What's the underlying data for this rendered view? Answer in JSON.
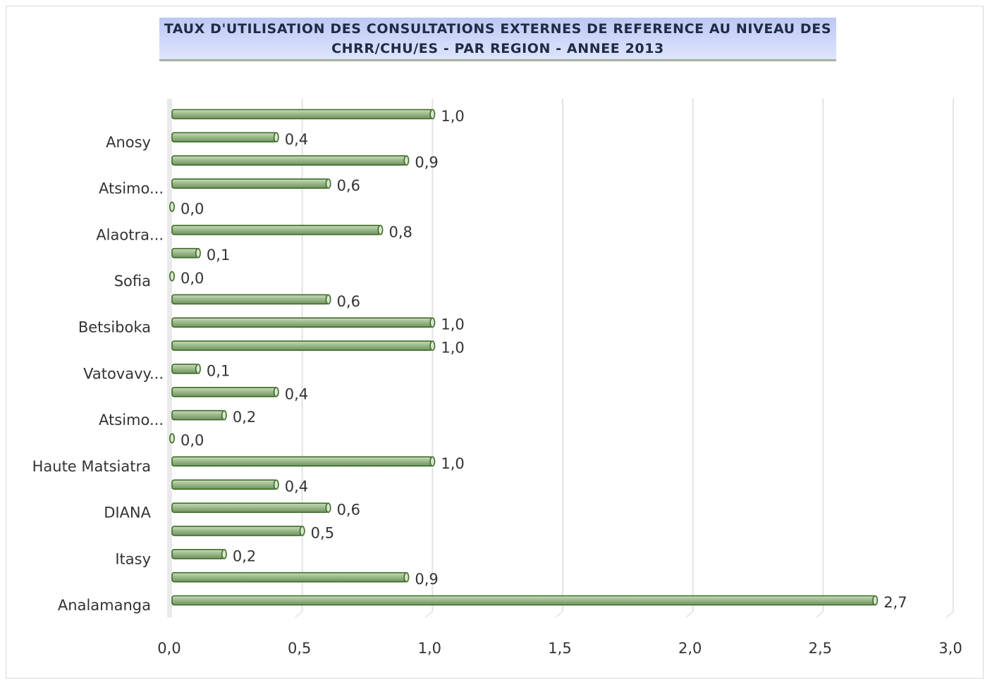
{
  "chart_data": {
    "type": "bar",
    "orientation": "horizontal",
    "title_lines": [
      "TAUX D'UTILISATION DES CONSULTATIONS EXTERNES DE REFERENCE AU NIVEAU DES",
      "CHRR/CHU/ES - PAR REGION - ANNEE 2013"
    ],
    "categories": [
      "",
      "Anosy",
      "",
      "Atsimo...",
      "",
      "Alaotra...",
      "",
      "Sofia",
      "",
      "Betsiboka",
      "",
      "Vatovavy...",
      "",
      "Atsimo...",
      "",
      "Haute Matsiatra",
      "",
      "DIANA",
      "",
      "Itasy",
      "",
      "Analamanga"
    ],
    "values": [
      1.0,
      0.4,
      0.9,
      0.6,
      0.0,
      0.8,
      0.1,
      0.0,
      0.6,
      1.0,
      1.0,
      0.1,
      0.4,
      0.2,
      0.0,
      1.0,
      0.4,
      0.6,
      0.5,
      0.2,
      0.9,
      2.7
    ],
    "data_labels": [
      "1,0",
      "0,4",
      "0,9",
      "0,6",
      "0,0",
      "0,8",
      "0,1",
      "0,0",
      "0,6",
      "1,0",
      "1,0",
      "0,1",
      "0,4",
      "0,2",
      "0,0",
      "1,0",
      "0,4",
      "0,6",
      "0,5",
      "0,2",
      "0,9",
      "2,7"
    ],
    "xlim": [
      0,
      3.0
    ],
    "x_ticks": [
      0,
      0.5,
      1.0,
      1.5,
      2.0,
      2.5,
      3.0
    ],
    "x_tick_labels": [
      "0,0",
      "0,5",
      "1,0",
      "1,5",
      "2,0",
      "2,5",
      "3,0"
    ],
    "grid": "vertical",
    "legend": "none",
    "bar_color": "#8fae7f",
    "bar_edge_color": "#3f6b2a",
    "title_bg_color": "#c8d2f7"
  }
}
